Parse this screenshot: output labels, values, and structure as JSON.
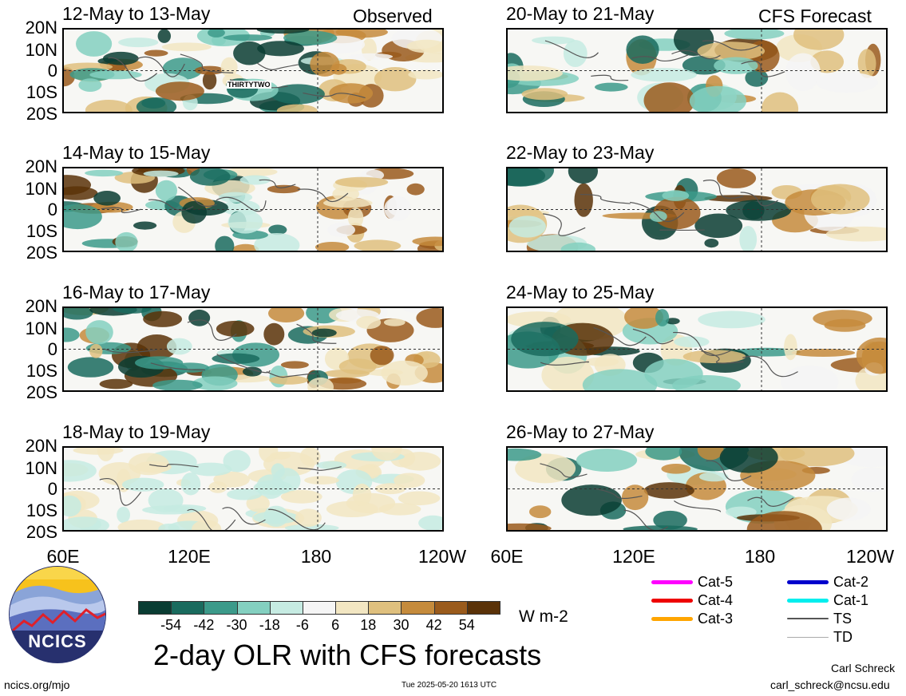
{
  "header": {
    "observed_label": "Observed",
    "forecast_label": "CFS Forecast"
  },
  "panels_left": [
    {
      "title": "12-May to 13-May",
      "storm_label": "THIRTYTWO"
    },
    {
      "title": "14-May to 15-May"
    },
    {
      "title": "16-May to 17-May"
    },
    {
      "title": "18-May to 19-May"
    }
  ],
  "panels_right": [
    {
      "title": "20-May to 21-May"
    },
    {
      "title": "22-May to 23-May"
    },
    {
      "title": "24-May to 25-May"
    },
    {
      "title": "26-May to 27-May"
    }
  ],
  "lat_labels": [
    "20N",
    "10N",
    "0",
    "10S",
    "20S"
  ],
  "lon_labels": [
    "60E",
    "120E",
    "180",
    "120W"
  ],
  "colorbar": {
    "colors": [
      "#0a3d33",
      "#1a6b5e",
      "#3c9a8a",
      "#84d0c0",
      "#c6ebe2",
      "#f5f5f5",
      "#f2e6c2",
      "#dfc07e",
      "#c58b3c",
      "#9a5b1c",
      "#5a3208"
    ],
    "ticks": [
      "-54",
      "-42",
      "-30",
      "-18",
      "-6",
      "6",
      "18",
      "30",
      "42",
      "54"
    ],
    "unit": "W m-2"
  },
  "main_title": "2-day OLR with CFS forecasts",
  "storm_legend": {
    "left": [
      {
        "label": "Cat-5",
        "color": "#ff00ff"
      },
      {
        "label": "Cat-4",
        "color": "#ee0000"
      },
      {
        "label": "Cat-3",
        "color": "#ffa500"
      }
    ],
    "right": [
      {
        "label": "Cat-2",
        "color": "#0000cc"
      },
      {
        "label": "Cat-1",
        "color": "#00eeee"
      },
      {
        "label": "TS",
        "color": "#555555"
      },
      {
        "label": "TD",
        "color": "#aaaaaa"
      }
    ]
  },
  "logo": {
    "text": "NCICS"
  },
  "footer": {
    "website": "ncics.org/mjo",
    "timestamp": "Tue 2025-05-20 1613 UTC",
    "author": "Carl Schreck",
    "email": "carl_schreck@ncsu.edu"
  }
}
